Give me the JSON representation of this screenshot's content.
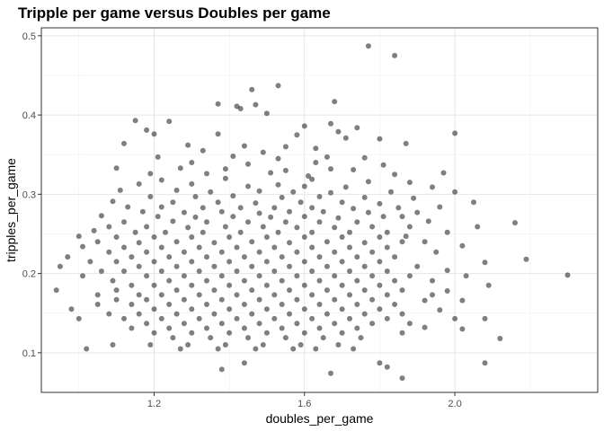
{
  "chart_data": {
    "type": "scatter",
    "title": "Tripple per game versus Doubles per game",
    "xlabel": "doubles_per_game",
    "ylabel": "tripples_per_game",
    "xlim": [
      0.9,
      2.38
    ],
    "ylim": [
      0.05,
      0.51
    ],
    "x_ticks": [
      1.2,
      1.6,
      2.0
    ],
    "x_tick_labels": [
      "1.2",
      "1.6",
      "2.0"
    ],
    "y_ticks": [
      0.1,
      0.2,
      0.3,
      0.4,
      0.5
    ],
    "y_tick_labels": [
      "0.1",
      "0.2",
      "0.3",
      "0.4",
      "0.5"
    ],
    "grid": true,
    "point_color": "#000000",
    "point_alpha": 0.5,
    "points": [
      [
        1.77,
        0.487
      ],
      [
        1.84,
        0.475
      ],
      [
        1.53,
        0.437
      ],
      [
        1.46,
        0.432
      ],
      [
        1.37,
        0.414
      ],
      [
        1.47,
        0.413
      ],
      [
        1.42,
        0.411
      ],
      [
        1.43,
        0.408
      ],
      [
        1.68,
        0.417
      ],
      [
        1.5,
        0.402
      ],
      [
        1.24,
        0.392
      ],
      [
        1.15,
        0.393
      ],
      [
        1.67,
        0.389
      ],
      [
        1.6,
        0.386
      ],
      [
        1.74,
        0.384
      ],
      [
        1.18,
        0.381
      ],
      [
        1.69,
        0.379
      ],
      [
        1.2,
        0.376
      ],
      [
        1.37,
        0.376
      ],
      [
        1.58,
        0.375
      ],
      [
        1.71,
        0.371
      ],
      [
        2.0,
        0.377
      ],
      [
        1.87,
        0.364
      ],
      [
        1.8,
        0.37
      ],
      [
        1.12,
        0.364
      ],
      [
        1.29,
        0.362
      ],
      [
        1.44,
        0.361
      ],
      [
        1.55,
        0.36
      ],
      [
        1.63,
        0.358
      ],
      [
        1.33,
        0.355
      ],
      [
        1.49,
        0.353
      ],
      [
        1.41,
        0.348
      ],
      [
        1.21,
        0.347
      ],
      [
        1.66,
        0.347
      ],
      [
        1.76,
        0.346
      ],
      [
        1.53,
        0.345
      ],
      [
        1.3,
        0.34
      ],
      [
        1.63,
        0.34
      ],
      [
        1.45,
        0.338
      ],
      [
        1.81,
        0.337
      ],
      [
        1.1,
        0.333
      ],
      [
        1.27,
        0.333
      ],
      [
        1.39,
        0.332
      ],
      [
        1.55,
        0.33
      ],
      [
        1.67,
        0.332
      ],
      [
        1.73,
        0.331
      ],
      [
        1.97,
        0.327
      ],
      [
        1.19,
        0.326
      ],
      [
        1.34,
        0.326
      ],
      [
        1.51,
        0.327
      ],
      [
        1.84,
        0.325
      ],
      [
        1.61,
        0.323
      ],
      [
        1.22,
        0.318
      ],
      [
        1.39,
        0.32
      ],
      [
        1.62,
        0.319
      ],
      [
        1.77,
        0.316
      ],
      [
        1.88,
        0.315
      ],
      [
        1.16,
        0.313
      ],
      [
        1.3,
        0.313
      ],
      [
        1.45,
        0.31
      ],
      [
        1.53,
        0.312
      ],
      [
        1.6,
        0.31
      ],
      [
        1.71,
        0.309
      ],
      [
        1.94,
        0.309
      ],
      [
        1.11,
        0.305
      ],
      [
        1.26,
        0.305
      ],
      [
        1.35,
        0.303
      ],
      [
        1.48,
        0.304
      ],
      [
        1.57,
        0.303
      ],
      [
        1.67,
        0.302
      ],
      [
        1.83,
        0.303
      ],
      [
        2.0,
        0.303
      ],
      [
        1.19,
        0.297
      ],
      [
        1.31,
        0.297
      ],
      [
        1.41,
        0.298
      ],
      [
        1.54,
        0.296
      ],
      [
        1.64,
        0.297
      ],
      [
        1.76,
        0.296
      ],
      [
        1.89,
        0.295
      ],
      [
        1.09,
        0.291
      ],
      [
        1.25,
        0.29
      ],
      [
        1.37,
        0.29
      ],
      [
        1.47,
        0.289
      ],
      [
        1.59,
        0.29
      ],
      [
        1.7,
        0.29
      ],
      [
        1.8,
        0.288
      ],
      [
        2.05,
        0.29
      ],
      [
        1.13,
        0.284
      ],
      [
        1.22,
        0.284
      ],
      [
        1.33,
        0.283
      ],
      [
        1.43,
        0.283
      ],
      [
        1.52,
        0.283
      ],
      [
        1.62,
        0.283
      ],
      [
        1.73,
        0.282
      ],
      [
        1.85,
        0.283
      ],
      [
        1.96,
        0.284
      ],
      [
        1.17,
        0.278
      ],
      [
        1.28,
        0.277
      ],
      [
        1.38,
        0.278
      ],
      [
        1.48,
        0.276
      ],
      [
        1.56,
        0.278
      ],
      [
        1.65,
        0.278
      ],
      [
        1.77,
        0.277
      ],
      [
        1.9,
        0.277
      ],
      [
        1.06,
        0.273
      ],
      [
        1.21,
        0.272
      ],
      [
        1.31,
        0.271
      ],
      [
        1.41,
        0.272
      ],
      [
        1.51,
        0.271
      ],
      [
        1.6,
        0.272
      ],
      [
        1.69,
        0.27
      ],
      [
        1.81,
        0.272
      ],
      [
        1.86,
        0.272
      ],
      [
        1.12,
        0.265
      ],
      [
        1.25,
        0.266
      ],
      [
        1.34,
        0.265
      ],
      [
        1.45,
        0.265
      ],
      [
        1.55,
        0.265
      ],
      [
        1.64,
        0.265
      ],
      [
        1.74,
        0.265
      ],
      [
        1.93,
        0.266
      ],
      [
        2.16,
        0.264
      ],
      [
        1.08,
        0.259
      ],
      [
        1.18,
        0.259
      ],
      [
        1.29,
        0.258
      ],
      [
        1.39,
        0.259
      ],
      [
        1.49,
        0.259
      ],
      [
        1.58,
        0.258
      ],
      [
        1.68,
        0.258
      ],
      [
        1.78,
        0.259
      ],
      [
        1.88,
        0.259
      ],
      [
        2.06,
        0.259
      ],
      [
        1.04,
        0.254
      ],
      [
        1.15,
        0.252
      ],
      [
        1.23,
        0.252
      ],
      [
        1.33,
        0.252
      ],
      [
        1.43,
        0.252
      ],
      [
        1.53,
        0.252
      ],
      [
        1.62,
        0.252
      ],
      [
        1.72,
        0.252
      ],
      [
        1.82,
        0.252
      ],
      [
        1.98,
        0.252
      ],
      [
        1.0,
        0.247
      ],
      [
        1.1,
        0.246
      ],
      [
        1.2,
        0.246
      ],
      [
        1.3,
        0.246
      ],
      [
        1.4,
        0.246
      ],
      [
        1.5,
        0.246
      ],
      [
        1.6,
        0.246
      ],
      [
        1.7,
        0.246
      ],
      [
        1.8,
        0.246
      ],
      [
        1.87,
        0.247
      ],
      [
        1.05,
        0.24
      ],
      [
        1.16,
        0.239
      ],
      [
        1.26,
        0.24
      ],
      [
        1.36,
        0.239
      ],
      [
        1.46,
        0.24
      ],
      [
        1.56,
        0.239
      ],
      [
        1.66,
        0.24
      ],
      [
        1.76,
        0.239
      ],
      [
        1.86,
        0.24
      ],
      [
        1.92,
        0.24
      ],
      [
        1.01,
        0.234
      ],
      [
        1.12,
        0.233
      ],
      [
        1.22,
        0.233
      ],
      [
        1.32,
        0.233
      ],
      [
        1.42,
        0.233
      ],
      [
        1.52,
        0.233
      ],
      [
        1.62,
        0.233
      ],
      [
        1.72,
        0.233
      ],
      [
        1.82,
        0.233
      ],
      [
        2.02,
        0.235
      ],
      [
        1.08,
        0.227
      ],
      [
        1.18,
        0.227
      ],
      [
        1.28,
        0.227
      ],
      [
        1.38,
        0.227
      ],
      [
        1.48,
        0.227
      ],
      [
        1.58,
        0.227
      ],
      [
        1.68,
        0.227
      ],
      [
        1.78,
        0.227
      ],
      [
        1.95,
        0.227
      ],
      [
        0.97,
        0.221
      ],
      [
        1.14,
        0.221
      ],
      [
        1.24,
        0.221
      ],
      [
        1.34,
        0.221
      ],
      [
        1.44,
        0.221
      ],
      [
        1.54,
        0.221
      ],
      [
        1.64,
        0.221
      ],
      [
        1.74,
        0.221
      ],
      [
        1.84,
        0.221
      ],
      [
        2.19,
        0.218
      ],
      [
        1.03,
        0.215
      ],
      [
        1.1,
        0.215
      ],
      [
        1.2,
        0.215
      ],
      [
        1.3,
        0.215
      ],
      [
        1.4,
        0.215
      ],
      [
        1.5,
        0.215
      ],
      [
        1.6,
        0.215
      ],
      [
        1.7,
        0.215
      ],
      [
        1.8,
        0.215
      ],
      [
        2.08,
        0.214
      ],
      [
        0.95,
        0.209
      ],
      [
        1.16,
        0.209
      ],
      [
        1.26,
        0.209
      ],
      [
        1.36,
        0.209
      ],
      [
        1.46,
        0.209
      ],
      [
        1.56,
        0.209
      ],
      [
        1.66,
        0.209
      ],
      [
        1.76,
        0.209
      ],
      [
        1.9,
        0.209
      ],
      [
        1.06,
        0.203
      ],
      [
        1.12,
        0.203
      ],
      [
        1.22,
        0.203
      ],
      [
        1.32,
        0.203
      ],
      [
        1.42,
        0.203
      ],
      [
        1.52,
        0.203
      ],
      [
        1.62,
        0.203
      ],
      [
        1.72,
        0.203
      ],
      [
        1.82,
        0.203
      ],
      [
        1.98,
        0.204
      ],
      [
        2.3,
        0.198
      ],
      [
        1.01,
        0.197
      ],
      [
        1.18,
        0.197
      ],
      [
        1.28,
        0.197
      ],
      [
        1.38,
        0.197
      ],
      [
        1.48,
        0.197
      ],
      [
        1.58,
        0.197
      ],
      [
        1.68,
        0.197
      ],
      [
        1.78,
        0.197
      ],
      [
        1.88,
        0.197
      ],
      [
        2.03,
        0.197
      ],
      [
        1.09,
        0.191
      ],
      [
        1.24,
        0.191
      ],
      [
        1.34,
        0.191
      ],
      [
        1.44,
        0.191
      ],
      [
        1.54,
        0.191
      ],
      [
        1.64,
        0.191
      ],
      [
        1.74,
        0.191
      ],
      [
        1.84,
        0.191
      ],
      [
        1.94,
        0.191
      ],
      [
        1.14,
        0.185
      ],
      [
        1.2,
        0.185
      ],
      [
        1.3,
        0.185
      ],
      [
        1.4,
        0.185
      ],
      [
        1.5,
        0.185
      ],
      [
        1.6,
        0.185
      ],
      [
        1.7,
        0.185
      ],
      [
        1.8,
        0.185
      ],
      [
        2.09,
        0.185
      ],
      [
        0.94,
        0.179
      ],
      [
        1.1,
        0.179
      ],
      [
        1.26,
        0.179
      ],
      [
        1.36,
        0.179
      ],
      [
        1.46,
        0.179
      ],
      [
        1.56,
        0.179
      ],
      [
        1.66,
        0.179
      ],
      [
        1.76,
        0.179
      ],
      [
        1.86,
        0.179
      ],
      [
        1.98,
        0.178
      ],
      [
        1.05,
        0.173
      ],
      [
        1.16,
        0.173
      ],
      [
        1.22,
        0.173
      ],
      [
        1.32,
        0.173
      ],
      [
        1.42,
        0.173
      ],
      [
        1.52,
        0.173
      ],
      [
        1.62,
        0.173
      ],
      [
        1.72,
        0.173
      ],
      [
        1.82,
        0.173
      ],
      [
        1.94,
        0.173
      ],
      [
        1.1,
        0.167
      ],
      [
        1.18,
        0.167
      ],
      [
        1.28,
        0.167
      ],
      [
        1.38,
        0.167
      ],
      [
        1.48,
        0.167
      ],
      [
        1.58,
        0.167
      ],
      [
        1.68,
        0.167
      ],
      [
        1.78,
        0.167
      ],
      [
        1.92,
        0.166
      ],
      [
        2.02,
        0.166
      ],
      [
        1.05,
        0.161
      ],
      [
        1.14,
        0.161
      ],
      [
        1.24,
        0.161
      ],
      [
        1.34,
        0.161
      ],
      [
        1.44,
        0.161
      ],
      [
        1.54,
        0.161
      ],
      [
        1.64,
        0.161
      ],
      [
        1.74,
        0.161
      ],
      [
        1.84,
        0.161
      ],
      [
        1.2,
        0.155
      ],
      [
        1.3,
        0.155
      ],
      [
        1.4,
        0.155
      ],
      [
        1.5,
        0.155
      ],
      [
        1.6,
        0.155
      ],
      [
        1.7,
        0.155
      ],
      [
        1.8,
        0.155
      ],
      [
        1.96,
        0.154
      ],
      [
        0.98,
        0.155
      ],
      [
        1.08,
        0.149
      ],
      [
        1.16,
        0.149
      ],
      [
        1.26,
        0.149
      ],
      [
        1.36,
        0.149
      ],
      [
        1.46,
        0.149
      ],
      [
        1.56,
        0.149
      ],
      [
        1.66,
        0.149
      ],
      [
        1.76,
        0.149
      ],
      [
        1.86,
        0.149
      ],
      [
        1.12,
        0.143
      ],
      [
        1.22,
        0.143
      ],
      [
        1.32,
        0.143
      ],
      [
        1.42,
        0.143
      ],
      [
        1.52,
        0.143
      ],
      [
        1.62,
        0.143
      ],
      [
        1.72,
        0.143
      ],
      [
        1.82,
        0.143
      ],
      [
        2.0,
        0.143
      ],
      [
        2.08,
        0.143
      ],
      [
        1.0,
        0.143
      ],
      [
        1.18,
        0.137
      ],
      [
        1.28,
        0.137
      ],
      [
        1.38,
        0.137
      ],
      [
        1.48,
        0.137
      ],
      [
        1.58,
        0.137
      ],
      [
        1.68,
        0.137
      ],
      [
        1.78,
        0.137
      ],
      [
        1.88,
        0.137
      ],
      [
        1.14,
        0.131
      ],
      [
        1.24,
        0.131
      ],
      [
        1.34,
        0.131
      ],
      [
        1.44,
        0.131
      ],
      [
        1.54,
        0.131
      ],
      [
        1.64,
        0.131
      ],
      [
        1.74,
        0.131
      ],
      [
        1.92,
        0.132
      ],
      [
        2.02,
        0.13
      ],
      [
        1.2,
        0.125
      ],
      [
        1.3,
        0.125
      ],
      [
        1.4,
        0.125
      ],
      [
        1.5,
        0.125
      ],
      [
        1.6,
        0.125
      ],
      [
        1.7,
        0.125
      ],
      [
        1.86,
        0.125
      ],
      [
        1.25,
        0.119
      ],
      [
        1.35,
        0.119
      ],
      [
        1.45,
        0.119
      ],
      [
        1.55,
        0.119
      ],
      [
        1.65,
        0.119
      ],
      [
        1.75,
        0.119
      ],
      [
        2.12,
        0.118
      ],
      [
        1.09,
        0.11
      ],
      [
        1.19,
        0.11
      ],
      [
        1.29,
        0.11
      ],
      [
        1.39,
        0.11
      ],
      [
        1.49,
        0.11
      ],
      [
        1.59,
        0.11
      ],
      [
        1.69,
        0.11
      ],
      [
        1.02,
        0.105
      ],
      [
        1.27,
        0.105
      ],
      [
        1.37,
        0.105
      ],
      [
        1.47,
        0.105
      ],
      [
        1.57,
        0.105
      ],
      [
        1.63,
        0.105
      ],
      [
        1.73,
        0.105
      ],
      [
        1.8,
        0.087
      ],
      [
        1.82,
        0.082
      ],
      [
        1.44,
        0.087
      ],
      [
        2.08,
        0.087
      ],
      [
        1.38,
        0.079
      ],
      [
        1.67,
        0.074
      ],
      [
        1.86,
        0.068
      ]
    ]
  }
}
